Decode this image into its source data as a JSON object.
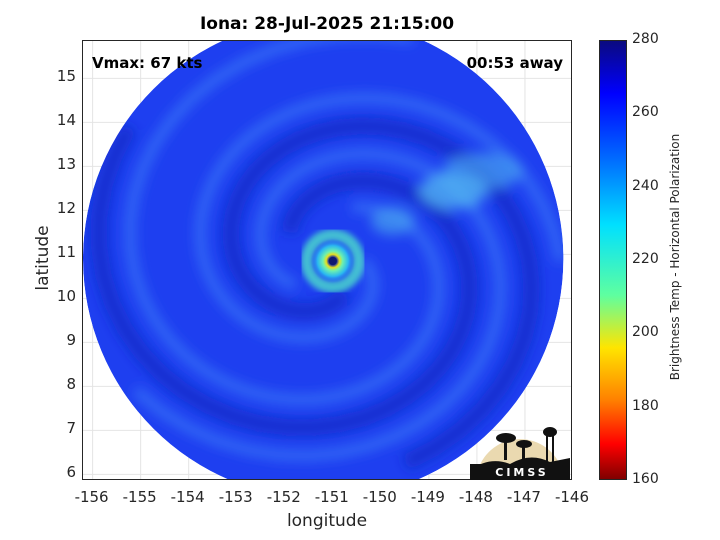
{
  "title": "Iona: 28-Jul-2025 21:15:00",
  "annotations": {
    "vmax": "Vmax: 67 kts",
    "time_away": "00:53 away"
  },
  "x_axis": {
    "label": "longitude",
    "range": [
      -156.2,
      -146
    ],
    "ticks": [
      -156,
      -155,
      -154,
      -153,
      -152,
      -151,
      -150,
      -149,
      -148,
      -147,
      -146
    ]
  },
  "y_axis": {
    "label": "latitude",
    "range": [
      5.85,
      15.85
    ],
    "ticks": [
      6,
      7,
      8,
      9,
      10,
      11,
      12,
      13,
      14,
      15
    ]
  },
  "colorbar": {
    "label": "Brightness Temp - Horizontal Polarization",
    "range": [
      160,
      280
    ],
    "ticks": [
      280,
      260,
      240,
      220,
      200,
      180,
      160
    ],
    "colormap": "jet"
  },
  "swath": {
    "center_lon": -151.2,
    "center_lat": 10.9,
    "radius_deg": 5
  },
  "storm": {
    "eye_lon": -151.0,
    "eye_lat": 10.85
  },
  "logo": {
    "text": "CIMSS"
  },
  "colors": {
    "background_blue": "#1e3cf0",
    "dark_band": "#1428c0",
    "ring": "#4fe8c8",
    "eyewall": "#f0e020"
  }
}
